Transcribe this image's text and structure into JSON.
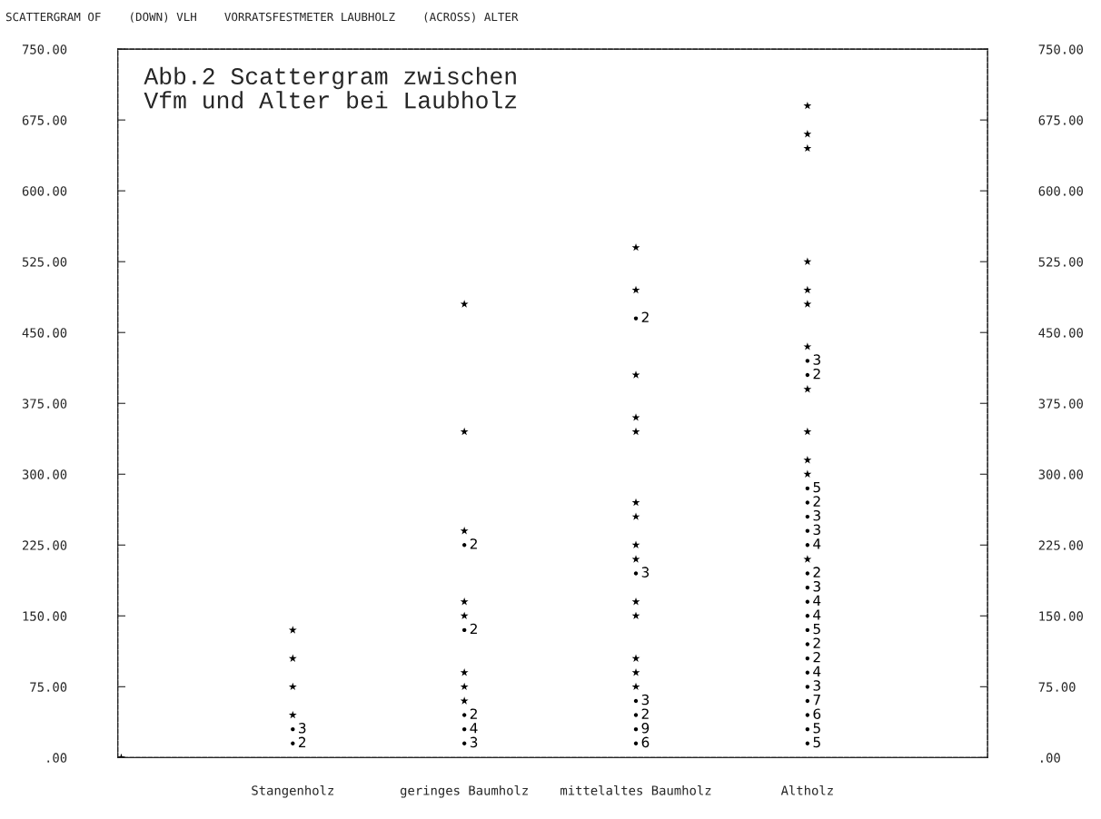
{
  "chart_data": {
    "type": "scatter",
    "title": "SCATTERGRAM OF    (DOWN) VLH    VORRATSFESTMETER LAUBHOLZ    (ACROSS) ALTER",
    "annotations": [
      "Abb.2 Scattergram zwischen\nVfm und Alter bei Laubholz"
    ],
    "categories": [
      null,
      "Stangenholz",
      "geringes Baumholz",
      "mittelaltes Baumholz",
      "Altholz"
    ],
    "series": [
      {
        "color": "#000000",
        "marker": "star",
        "x": [
          null,
          "Stangenholz",
          "Stangenholz",
          "Stangenholz",
          "Stangenholz",
          "geringes Baumholz",
          "geringes Baumholz",
          "geringes Baumholz",
          "geringes Baumholz",
          "geringes Baumholz",
          "geringes Baumholz",
          "geringes Baumholz",
          "geringes Baumholz",
          "mittelaltes Baumholz",
          "mittelaltes Baumholz",
          "mittelaltes Baumholz",
          "mittelaltes Baumholz",
          "mittelaltes Baumholz",
          "mittelaltes Baumholz",
          "mittelaltes Baumholz",
          "mittelaltes Baumholz",
          "mittelaltes Baumholz",
          "mittelaltes Baumholz",
          "mittelaltes Baumholz",
          "mittelaltes Baumholz",
          "mittelaltes Baumholz",
          "mittelaltes Baumholz",
          "Altholz",
          "Altholz",
          "Altholz",
          "Altholz",
          "Altholz",
          "Altholz",
          "Altholz",
          "Altholz",
          "Altholz",
          "Altholz",
          "Altholz",
          "Altholz"
        ],
        "values": [
          0,
          135,
          105,
          75,
          45,
          480,
          345,
          240,
          165,
          150,
          90,
          75,
          60,
          540,
          495,
          405,
          360,
          345,
          270,
          255,
          225,
          210,
          165,
          150,
          105,
          90,
          75,
          690,
          660,
          645,
          525,
          495,
          480,
          435,
          390,
          345,
          315,
          300,
          210
        ]
      },
      {
        "name": "2",
        "color": "#000000",
        "marker": "circle",
        "x": [
          "Stangenholz",
          "geringes Baumholz",
          "geringes Baumholz",
          "geringes Baumholz",
          "mittelaltes Baumholz",
          "mittelaltes Baumholz",
          "Altholz",
          "Altholz",
          "Altholz",
          "Altholz",
          "Altholz"
        ],
        "values": [
          15,
          225,
          135,
          45,
          465,
          45,
          405,
          270,
          195,
          120,
          105
        ]
      },
      {
        "name": "3",
        "color": "#000000",
        "marker": "circle",
        "x": [
          "Stangenholz",
          "geringes Baumholz",
          "mittelaltes Baumholz",
          "mittelaltes Baumholz",
          "Altholz",
          "Altholz",
          "Altholz",
          "Altholz",
          "Altholz"
        ],
        "values": [
          30,
          15,
          195,
          60,
          420,
          255,
          240,
          180,
          75
        ]
      },
      {
        "name": "4",
        "color": "#000000",
        "marker": "circle",
        "x": [
          "geringes Baumholz",
          "Altholz",
          "Altholz",
          "Altholz",
          "Altholz"
        ],
        "values": [
          30,
          225,
          165,
          150,
          90
        ]
      },
      {
        "name": "5",
        "color": "#000000",
        "marker": "circle",
        "x": [
          "Altholz",
          "Altholz",
          "Altholz",
          "Altholz"
        ],
        "values": [
          285,
          135,
          30,
          15
        ]
      },
      {
        "name": "6",
        "color": "#000000",
        "marker": "circle",
        "x": [
          "mittelaltes Baumholz",
          "Altholz"
        ],
        "values": [
          15,
          45
        ]
      },
      {
        "name": "7",
        "color": "#000000",
        "marker": "circle",
        "x": [
          "Altholz"
        ],
        "values": [
          60
        ]
      },
      {
        "name": "9",
        "color": "#000000",
        "marker": "circle",
        "x": [
          "mittelaltes Baumholz"
        ],
        "values": [
          30
        ]
      }
    ],
    "ylim": [
      0,
      750
    ],
    "yticks": [
      {
        "value": 0,
        "label": ".00"
      },
      {
        "value": 75,
        "label": "75.00"
      },
      {
        "value": 150,
        "label": "150.00"
      },
      {
        "value": 225,
        "label": "225.00"
      },
      {
        "value": 300,
        "label": "300.00"
      },
      {
        "value": 375,
        "label": "375.00"
      },
      {
        "value": 450,
        "label": "450.00"
      },
      {
        "value": 525,
        "label": "525.00"
      },
      {
        "value": 600,
        "label": "600.00"
      },
      {
        "value": 675,
        "label": "675.00"
      },
      {
        "value": 750,
        "label": "750.00"
      }
    ],
    "y2lim": [
      0,
      750
    ],
    "y2ticks": [
      {
        "value": 0,
        "label": ".00"
      },
      {
        "value": 75,
        "label": "75.00"
      },
      {
        "value": 150,
        "label": "150.00"
      },
      {
        "value": 225,
        "label": "225.00"
      },
      {
        "value": 300,
        "label": "300.00"
      },
      {
        "value": 375,
        "label": "375.00"
      },
      {
        "value": 450,
        "label": "450.00"
      },
      {
        "value": 525,
        "label": "525.00"
      },
      {
        "value": 600,
        "label": "600.00"
      },
      {
        "value": 675,
        "label": "675.00"
      },
      {
        "value": 750,
        "label": "750.00"
      }
    ],
    "grid": false,
    "legend": false
  }
}
